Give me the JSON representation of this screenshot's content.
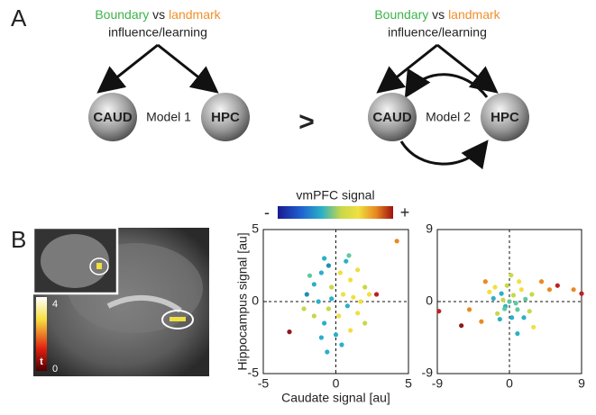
{
  "panel_a": {
    "label": "A",
    "left": {
      "boundary": "Boundary",
      "vs": "vs",
      "landmark": "landmark",
      "influence": "influence/learning",
      "caud": "CAUD",
      "model": "Model 1",
      "hpc": "HPC"
    },
    "comparison": ">",
    "right": {
      "boundary": "Boundary",
      "vs": "vs",
      "landmark": "landmark",
      "influence": "influence/learning",
      "caud": "CAUD",
      "model": "Model 2",
      "hpc": "HPC"
    }
  },
  "panel_b": {
    "label": "B",
    "t_max": "4",
    "t_symbol": "t",
    "t_min": "0",
    "colorbar": {
      "title": "vmPFC signal",
      "min_label": "-",
      "max_label": "+"
    }
  },
  "chart_data": [
    {
      "type": "scatter",
      "x_label": "Caudate signal [au]",
      "y_label": "Hippocampus signal [au]",
      "xlim": [
        -5,
        5
      ],
      "ylim": [
        -5,
        5
      ],
      "xticks": [
        -5,
        0,
        5
      ],
      "yticks": [
        -5,
        0,
        5
      ],
      "x": [
        -1.5,
        -1.0,
        -0.5,
        0.3,
        1.0,
        1.5,
        2.0,
        2.3,
        0.5,
        -0.3,
        -1.2,
        -2.0,
        -2.2,
        -1.5,
        -0.8,
        0.2,
        0.8,
        1.5,
        2.0,
        1.0,
        0.0,
        -1.0,
        -0.3,
        0.7,
        -0.8,
        4.2,
        2.8,
        -3.2,
        1.2,
        -0.5,
        -1.8,
        0.4,
        1.7,
        -0.6,
        0.9
      ],
      "y": [
        1.2,
        2.0,
        2.5,
        2.0,
        1.5,
        2.2,
        1.0,
        0.5,
        0.5,
        0.2,
        0.0,
        0.5,
        -0.5,
        -1.0,
        -1.5,
        -1.0,
        -0.3,
        -0.8,
        -1.5,
        -2.0,
        -2.3,
        -2.5,
        1.0,
        2.8,
        3.0,
        4.2,
        0.5,
        -2.1,
        0.3,
        -0.5,
        1.8,
        -3.0,
        0.0,
        -3.5,
        3.2
      ],
      "colors": [
        "#2ab0c8",
        "#2ab0c8",
        "#1f90b0",
        "#f0e040",
        "#f0e040",
        "#e8e048",
        "#c8d848",
        "#f0e040",
        "#f0e040",
        "#2ab0c8",
        "#2ab0c8",
        "#1f90b0",
        "#c8d848",
        "#c8d848",
        "#2ab0c8",
        "#f0e040",
        "#2ab0c8",
        "#f0e040",
        "#c8d848",
        "#f0e040",
        "#2ab0c8",
        "#2ab0c8",
        "#c8d848",
        "#2ab0c8",
        "#2ab0c8",
        "#e88a20",
        "#c02020",
        "#901818",
        "#f0e040",
        "#c8d848",
        "#60c8a0",
        "#2ab0c8",
        "#f0e040",
        "#2ab0c8",
        "#60c8a0"
      ]
    },
    {
      "type": "scatter",
      "xlim": [
        -9,
        9
      ],
      "ylim": [
        -9,
        9
      ],
      "xticks": [
        -9,
        0,
        9
      ],
      "yticks": [
        -9,
        0,
        9
      ],
      "x": [
        0.0,
        0.5,
        -0.5,
        1.0,
        -1.0,
        1.5,
        -1.5,
        2.0,
        -2.0,
        0.3,
        -0.3,
        1.2,
        -1.2,
        0.8,
        -0.8,
        2.5,
        -2.5,
        4.0,
        5.0,
        6.0,
        8.0,
        9.0,
        -8.8,
        -6.0,
        -5.0,
        -3.5,
        -3.0,
        3.0,
        1.0,
        0.2,
        -0.6,
        1.8,
        -1.8,
        2.8
      ],
      "y": [
        0.0,
        0.8,
        -0.6,
        -1.0,
        1.0,
        1.5,
        -1.5,
        0.3,
        0.4,
        -2.0,
        2.0,
        2.5,
        -2.2,
        -0.2,
        0.2,
        -1.2,
        1.2,
        2.5,
        1.5,
        2.0,
        1.5,
        1.0,
        -1.2,
        -3.0,
        -1.0,
        -2.5,
        2.5,
        -3.2,
        -4.0,
        3.3,
        -0.9,
        -2.0,
        1.8,
        0.9
      ],
      "colors": [
        "#60c8a0",
        "#c8d848",
        "#2ab0c8",
        "#60c8a0",
        "#2ab0c8",
        "#f0e040",
        "#c8d848",
        "#60c8a0",
        "#2ab0c8",
        "#2ab0c8",
        "#c8d848",
        "#f0e040",
        "#2ab0c8",
        "#60c8a0",
        "#c8d848",
        "#c8d848",
        "#f0e040",
        "#e88a20",
        "#e88a20",
        "#c02020",
        "#e88a20",
        "#c02020",
        "#c02020",
        "#901818",
        "#e88a20",
        "#e88a20",
        "#e88a20",
        "#f0e040",
        "#2ab0c8",
        "#c8d848",
        "#60c8a0",
        "#2ab0c8",
        "#f0e040",
        "#c8d848"
      ]
    }
  ]
}
